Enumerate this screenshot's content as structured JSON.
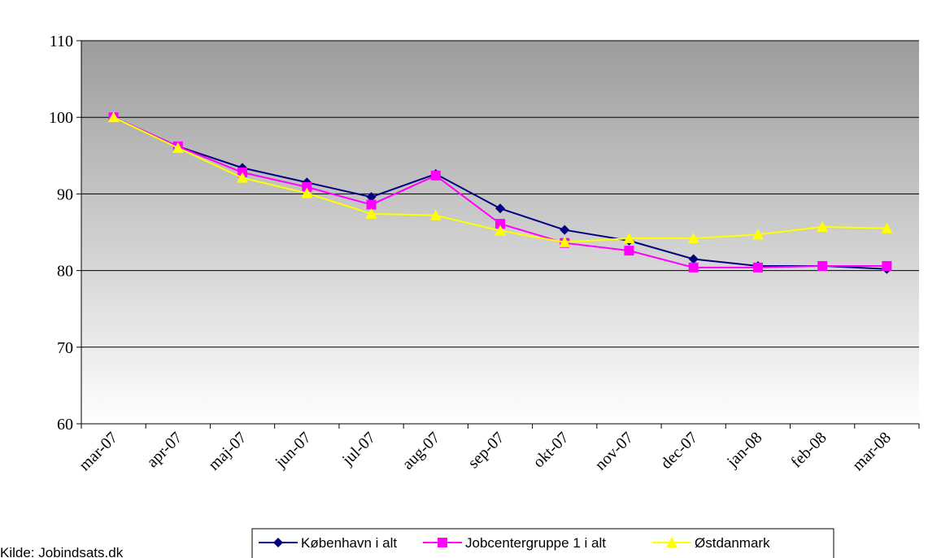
{
  "chart_data": {
    "type": "line",
    "source": "Kilde: Jobindsats.dk",
    "categories": [
      "mar-07",
      "apr-07",
      "maj-07",
      "jun-07",
      "jul-07",
      "aug-07",
      "sep-07",
      "okt-07",
      "nov-07",
      "dec-07",
      "jan-08",
      "feb-08",
      "mar-08"
    ],
    "series": [
      {
        "name": "København i alt",
        "color": "#000080",
        "marker": "diamond",
        "values": [
          100,
          96.2,
          93.4,
          91.5,
          89.6,
          92.6,
          88.1,
          85.3,
          83.9,
          81.5,
          80.6,
          80.6,
          80.2
        ]
      },
      {
        "name": "Jobcentergruppe 1 i alt",
        "color": "#ff00ff",
        "marker": "square",
        "values": [
          100,
          96.2,
          92.8,
          90.9,
          88.6,
          92.4,
          86.1,
          83.6,
          82.6,
          80.4,
          80.4,
          80.6,
          80.6
        ]
      },
      {
        "name": "Østdanmark",
        "color": "#ffff00",
        "marker": "triangle",
        "values": [
          100,
          96.0,
          92.1,
          90.1,
          87.4,
          87.2,
          85.2,
          83.7,
          84.2,
          84.2,
          84.7,
          85.7,
          85.5
        ]
      }
    ],
    "ylim": [
      60,
      110
    ],
    "yticks": [
      60,
      70,
      80,
      90,
      100,
      110
    ],
    "grid": true
  }
}
